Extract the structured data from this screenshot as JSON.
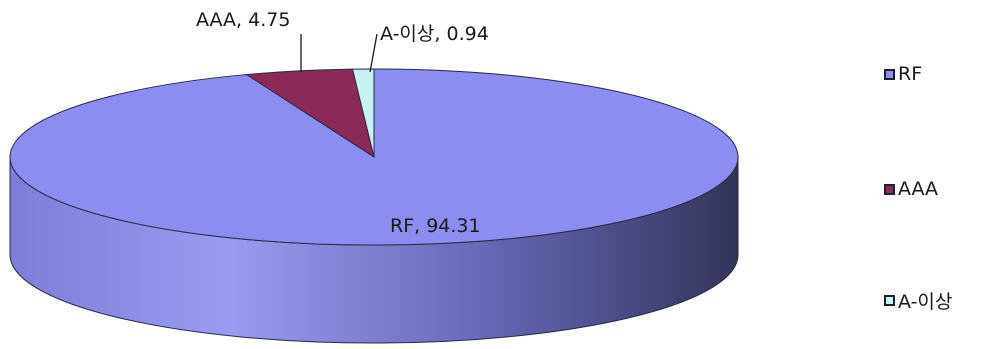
{
  "chart_data": {
    "type": "pie",
    "style": "3d",
    "title": "",
    "categories": [
      "RF",
      "AAA",
      "A-이상"
    ],
    "values": [
      94.31,
      4.75,
      0.94
    ],
    "colors": [
      "#8b8df0",
      "#8b2a59",
      "#c8f2f4"
    ],
    "side_colors": [
      "#3e3f68",
      "#4a1530",
      "#6a8a8c"
    ],
    "data_labels": [
      "RF, 94.31",
      "AAA, 4.75",
      "A-이상, 0.94"
    ],
    "legend": {
      "position": "right",
      "entries": [
        "RF",
        "AAA",
        "A-이상"
      ]
    }
  }
}
